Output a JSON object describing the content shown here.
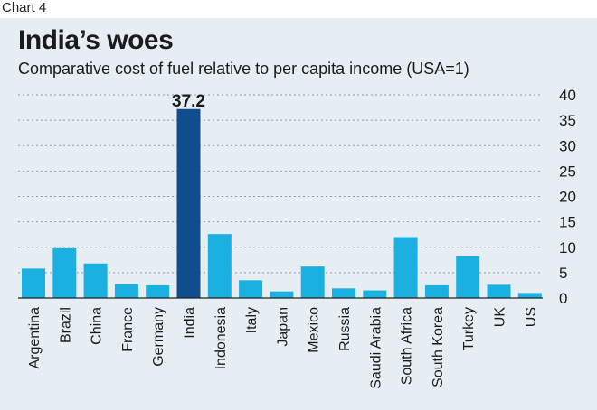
{
  "header": {
    "chart_label": "Chart 4"
  },
  "chart_data": {
    "type": "bar",
    "title": "India’s woes",
    "subtitle": "Comparative cost of fuel relative to per capita income (USA=1)",
    "categories": [
      "Argentina",
      "Brazil",
      "China",
      "France",
      "Germany",
      "India",
      "Indonesia",
      "Italy",
      "Japan",
      "Mexico",
      "Russia",
      "Saudi Arabia",
      "South Africa",
      "South Korea",
      "Turkey",
      "UK",
      "US"
    ],
    "values": [
      5.8,
      9.8,
      6.8,
      2.7,
      2.5,
      37.2,
      12.6,
      3.5,
      1.3,
      6.2,
      1.9,
      1.5,
      12.0,
      2.5,
      8.2,
      2.6,
      1.0
    ],
    "data_labels": [
      {
        "category": "India",
        "text": "37.2"
      }
    ],
    "highlight": "India",
    "ylim": [
      0,
      40
    ],
    "yticks": [
      0,
      5,
      10,
      15,
      20,
      25,
      30,
      35,
      40
    ],
    "yaxis_position": "right",
    "grid": "dotted horizontal",
    "colors": {
      "bar": "#1ab0e0",
      "highlight": "#0f4d8f",
      "background": "#e6eef3",
      "grid": "#8a9aa5",
      "text": "#1b1b1b"
    }
  }
}
